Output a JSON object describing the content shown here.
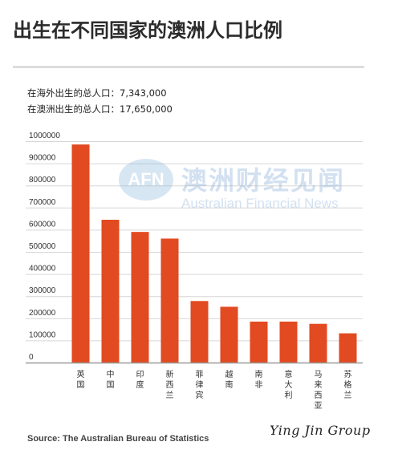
{
  "header": {
    "title": "出生在不同国家的澳洲人口比例"
  },
  "stats": {
    "overseas_born": "在海外出生的总人口：7,343,000",
    "australia_born": "在澳洲出生的总人口：17,650,000"
  },
  "watermark": {
    "logo": "AFN",
    "chinese": "澳洲财经见闻",
    "english": "Australian Financial News"
  },
  "footer": {
    "source": "Source: The Australian Bureau of Statistics",
    "signature": "Ying Jin Group"
  },
  "colors": {
    "bar": "#e24a21",
    "axis": "#999999",
    "grid": "#d6d6d6",
    "tick_text": "#333333"
  },
  "chart_data": {
    "type": "bar",
    "categories": [
      "英国",
      "中国",
      "印度",
      "新西兰",
      "菲律宾",
      "越南",
      "南非",
      "意大利",
      "马来西亚",
      "苏格兰"
    ],
    "values": [
      985000,
      645000,
      590000,
      560000,
      278000,
      252000,
      185000,
      185000,
      175000,
      132000
    ],
    "yticks": [
      0,
      100000,
      200000,
      300000,
      400000,
      500000,
      600000,
      700000,
      800000,
      900000,
      1000000
    ],
    "ylim": [
      0,
      1000000
    ],
    "grid": true,
    "xlabel": "",
    "ylabel": ""
  }
}
